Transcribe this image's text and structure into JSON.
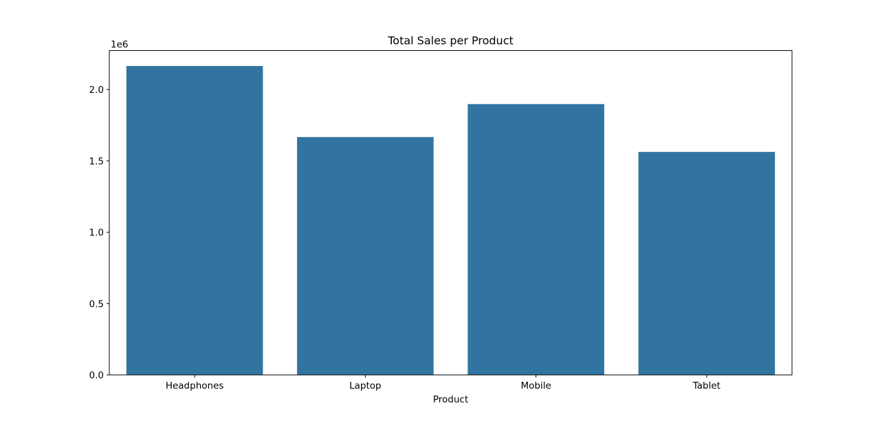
{
  "chart_data": {
    "type": "bar",
    "title": "Total Sales per Product",
    "xlabel": "Product",
    "ylabel": "",
    "y_offset_label": "1e6",
    "categories": [
      "Headphones",
      "Laptop",
      "Mobile",
      "Tablet"
    ],
    "values": [
      2165000,
      1667000,
      1898000,
      1563000
    ],
    "ylim": [
      0,
      2273250
    ],
    "yticks": [
      0.0,
      0.5,
      1.0,
      1.5,
      2.0
    ],
    "ytick_labels": [
      "0.0",
      "0.5",
      "1.0",
      "1.5",
      "2.0"
    ],
    "ytick_multiplier": 1000000,
    "grid": false,
    "bar_color": "#3274a1"
  }
}
